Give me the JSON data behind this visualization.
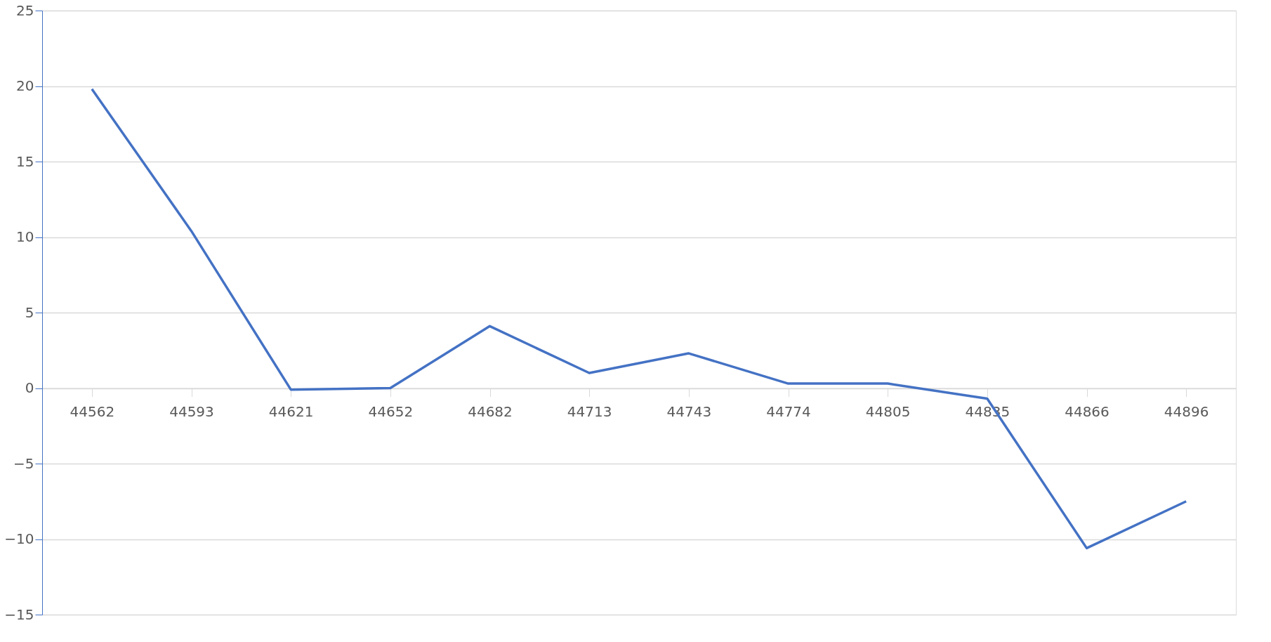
{
  "chart_data": {
    "type": "line",
    "categories": [
      "44562",
      "44593",
      "44621",
      "44652",
      "44682",
      "44713",
      "44743",
      "44774",
      "44805",
      "44835",
      "44866",
      "44896"
    ],
    "series": [
      {
        "color": "#4472c4",
        "values": [
          19.8,
          10.4,
          -0.1,
          0.0,
          4.1,
          1.0,
          2.3,
          0.3,
          0.3,
          -0.7,
          -10.6,
          -7.5
        ]
      }
    ],
    "ylim": [
      -15,
      25
    ],
    "yticks": [
      -15,
      -10,
      -5,
      0,
      5,
      10,
      15,
      20,
      25
    ],
    "grid": "y",
    "marker": "none",
    "line_style": "solid"
  }
}
